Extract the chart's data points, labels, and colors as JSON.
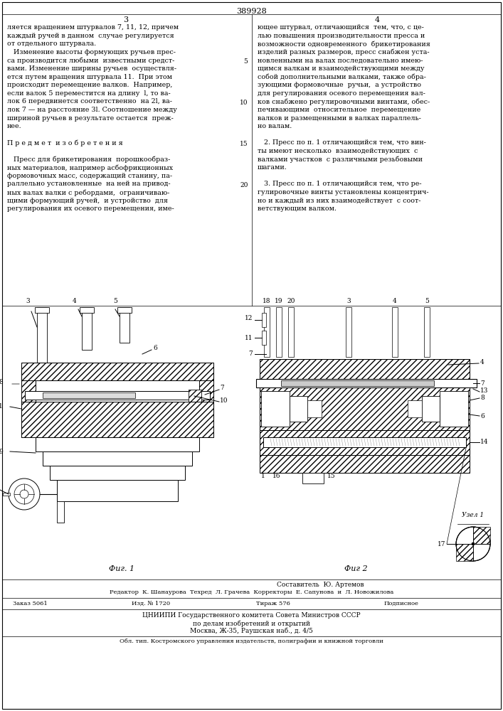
{
  "patent_number": "389928",
  "page_left": "3",
  "page_right": "4",
  "bg_color": "#ffffff",
  "text_color": "#000000",
  "left_col_lines": [
    "ляется вращением штурвалов 7, 11, 12, причем",
    "каждый ручей в данном  случае регулируется",
    "от отдельного штурвала.",
    "   Изменение высоты формующих ручьев прес-",
    "са производится любыми  известными средст-",
    "вами. Изменение ширины ручьев  осуществля-",
    "ется путем вращения штурвала 11.  При этом",
    "происходит перемещение валков.  Например,",
    "если валок 5 переместится на длину  l, то ва-",
    "лок 6 передвинется соответственно  на 2l, ва-",
    "лок 7 — на расстояние 3l. Соотношение между",
    "шириной ручьев в результате остается  преж-",
    "нее.",
    "",
    "П р е д м е т  и з о б р е т е н и я",
    "",
    "   Пресс для брикетирования  порошкообраз-",
    "ных материалов, например асбофрикционных",
    "формовочных масс, содержащий станину, па-",
    "раллельно установленные  на ней на привод-",
    "ных валах валки с ребордами,  ограничиваю-",
    "щими формующий ручей,  и устройство  для",
    "регулирования их осевого перемещения, име-"
  ],
  "right_col_lines": [
    "ющее штурвал, отличающийся  тем, что, с це-",
    "лью повышения производительности пресса и",
    "возможности одновременного  брикетирования",
    "изделий разных размеров, пресс снабжен уста-",
    "новленными на валах последовательно имею-",
    "щимся валкам и взаимодействующими между",
    "собой дополнительными валками, также обра-",
    "зующими формовочные  ручьи,  а устройство",
    "для регулирования осевого перемещения вал-",
    "ков снабжено регулировочными винтами, обес-",
    "печивающими  относительное  перемещение",
    "валков и размещенными в валках параллель-",
    "но валам.",
    "",
    "   2. Пресс по п. 1 отличающийся тем, что вин-",
    "ты имеют несколько  взаимодействующих  с",
    "валками участков  с различными резьбовыми",
    "шагами.",
    "",
    "   3. Пресс по п. 1 отличающийся тем, что ре-",
    "гулировочные винты установлены концентрич-",
    "но и каждый из них взаимодействует  с соот-",
    "ветствующим валком."
  ],
  "line_numbers": [
    5,
    10,
    15,
    20
  ],
  "footer_line1": "Составитель  Ю. Артемов",
  "footer_line2": "Редактор  К. Шанаурова  Техред  Л. Грачева  Корректоры  Е. Сапунова  и  Л. Новожилова",
  "footer_zakas": "Заказ 5061",
  "footer_izd": "Изд. № 1720",
  "footer_tirazh": "Тираж 576",
  "footer_podp": "Подписное",
  "footer_org": "ЦНИИПИ Государственного комитета Совета Министров СССР",
  "footer_dela": "по делам изобретений и открытий",
  "footer_addr": "Москва, Ж-35, Раушская наб., д. 4/5",
  "footer_obl": "Обл. тип. Костромского управления издательств, полиграфии и книжной торговли",
  "fig1_label": "Фиг. 1",
  "fig2_label": "Фиг 2",
  "node_label": "Узел 1"
}
